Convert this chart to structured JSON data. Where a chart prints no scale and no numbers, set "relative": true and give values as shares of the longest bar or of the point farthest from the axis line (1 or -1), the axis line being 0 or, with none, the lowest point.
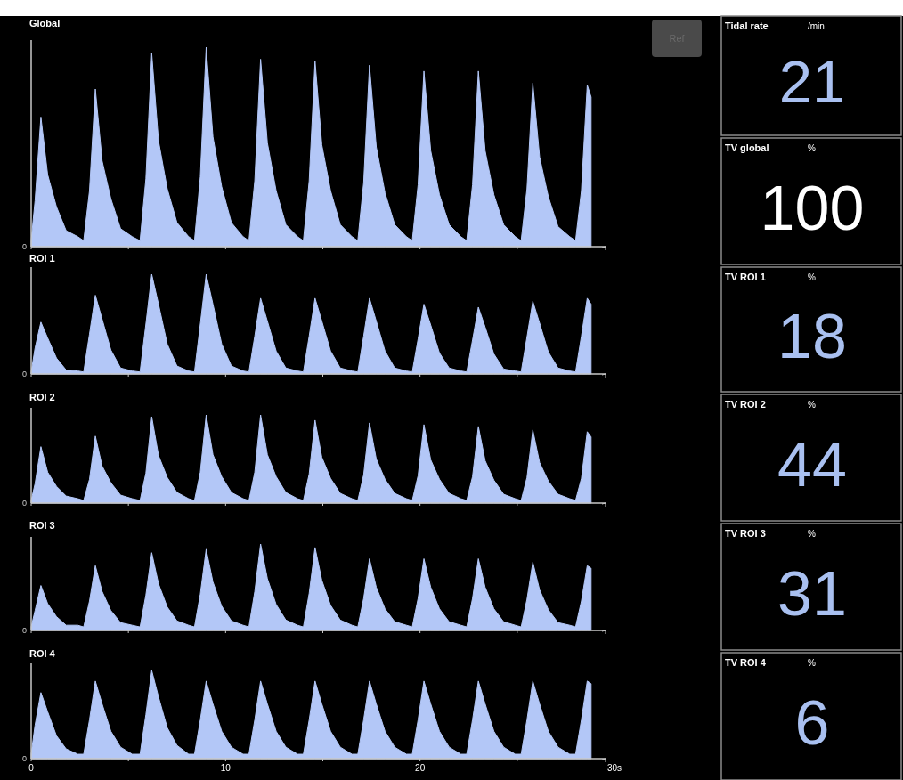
{
  "chart_data": [
    {
      "type": "area",
      "title": "Global",
      "relative": true,
      "xlim": [
        0,
        30
      ],
      "xticks": [
        0,
        5,
        10,
        15,
        20,
        25,
        30
      ],
      "tick_labels": false,
      "annotations": [
        "0",
        "Ref"
      ],
      "x": [
        0,
        0.2,
        0.5,
        0.85,
        1.3,
        1.8,
        2.4,
        2.7,
        3.0,
        3.3,
        3.65,
        4.1,
        4.6,
        5.2,
        5.6,
        5.9,
        6.2,
        6.55,
        7.0,
        7.5,
        8.1,
        8.4,
        8.7,
        9.0,
        9.35,
        9.8,
        10.3,
        10.9,
        11.2,
        11.5,
        11.8,
        12.15,
        12.6,
        13.1,
        13.7,
        14.0,
        14.3,
        14.6,
        14.95,
        15.4,
        15.9,
        16.5,
        16.8,
        17.1,
        17.4,
        17.75,
        18.2,
        18.7,
        19.3,
        19.6,
        19.9,
        20.2,
        20.55,
        21.0,
        21.5,
        22.1,
        22.4,
        22.7,
        23.0,
        23.35,
        23.8,
        24.3,
        24.9,
        25.2,
        25.5,
        25.8,
        26.15,
        26.6,
        27.1,
        27.7,
        28.0,
        28.3,
        28.6,
        28.8
      ],
      "series": [
        {
          "color": "#b3c7f7",
          "values": [
            0.03,
            0.23,
            0.65,
            0.36,
            0.2,
            0.08,
            0.05,
            0.03,
            0.28,
            0.79,
            0.43,
            0.24,
            0.09,
            0.05,
            0.03,
            0.34,
            0.97,
            0.53,
            0.29,
            0.12,
            0.05,
            0.03,
            0.35,
            1,
            0.55,
            0.3,
            0.12,
            0.05,
            0.03,
            0.33,
            0.94,
            0.52,
            0.28,
            0.11,
            0.05,
            0.03,
            0.33,
            0.93,
            0.51,
            0.28,
            0.11,
            0.05,
            0.03,
            0.32,
            0.91,
            0.5,
            0.27,
            0.11,
            0.05,
            0.03,
            0.31,
            0.88,
            0.48,
            0.26,
            0.11,
            0.05,
            0.03,
            0.31,
            0.88,
            0.48,
            0.26,
            0.11,
            0.05,
            0.03,
            0.29,
            0.82,
            0.45,
            0.25,
            0.1,
            0.05,
            0.03,
            0.28,
            0.81,
            0.75
          ]
        }
      ]
    },
    {
      "type": "area",
      "title": "ROI 1",
      "relative": true,
      "xlim": [
        0,
        30
      ],
      "xticks": [
        0,
        5,
        10,
        15,
        20,
        25,
        30
      ],
      "tick_labels": false,
      "annotations": [
        "0"
      ],
      "x": [
        0,
        0.2,
        0.5,
        0.85,
        1.3,
        1.8,
        2.4,
        2.7,
        3.0,
        3.3,
        3.65,
        4.1,
        4.6,
        5.2,
        5.6,
        5.9,
        6.2,
        6.55,
        7.0,
        7.5,
        8.1,
        8.4,
        8.7,
        9.0,
        9.35,
        9.8,
        10.3,
        10.9,
        11.2,
        11.5,
        11.8,
        12.15,
        12.6,
        13.1,
        13.7,
        14.0,
        14.3,
        14.6,
        14.95,
        15.4,
        15.9,
        16.5,
        16.8,
        17.1,
        17.4,
        17.75,
        18.2,
        18.7,
        19.3,
        19.6,
        19.9,
        20.2,
        20.55,
        21.0,
        21.5,
        22.1,
        22.4,
        22.7,
        23.0,
        23.35,
        23.8,
        24.3,
        24.9,
        25.2,
        25.5,
        25.8,
        26.15,
        26.6,
        27.1,
        27.7,
        28.0,
        28.3,
        28.6,
        28.8
      ],
      "series": [
        {
          "color": "#b3c7f7",
          "values": [
            0.02,
            0.26,
            0.52,
            0.36,
            0.16,
            0.04,
            0.03,
            0.02,
            0.4,
            0.79,
            0.55,
            0.24,
            0.06,
            0.03,
            0.02,
            0.5,
            1,
            0.7,
            0.3,
            0.08,
            0.03,
            0.02,
            0.5,
            1,
            0.7,
            0.3,
            0.08,
            0.03,
            0.02,
            0.38,
            0.76,
            0.53,
            0.23,
            0.06,
            0.03,
            0.02,
            0.38,
            0.76,
            0.53,
            0.23,
            0.06,
            0.03,
            0.02,
            0.38,
            0.76,
            0.53,
            0.23,
            0.06,
            0.03,
            0.02,
            0.35,
            0.7,
            0.49,
            0.21,
            0.06,
            0.03,
            0.02,
            0.34,
            0.67,
            0.47,
            0.2,
            0.05,
            0.03,
            0.02,
            0.37,
            0.73,
            0.51,
            0.22,
            0.06,
            0.03,
            0.02,
            0.38,
            0.76,
            0.7
          ]
        }
      ]
    },
    {
      "type": "area",
      "title": "ROI 2",
      "relative": true,
      "xlim": [
        0,
        30
      ],
      "xticks": [
        0,
        5,
        10,
        15,
        20,
        25,
        30
      ],
      "tick_labels": false,
      "annotations": [
        "0"
      ],
      "x": [
        0,
        0.2,
        0.5,
        0.85,
        1.3,
        1.8,
        2.4,
        2.7,
        3.0,
        3.3,
        3.65,
        4.1,
        4.6,
        5.2,
        5.6,
        5.9,
        6.2,
        6.55,
        7.0,
        7.5,
        8.1,
        8.4,
        8.7,
        9.0,
        9.35,
        9.8,
        10.3,
        10.9,
        11.2,
        11.5,
        11.8,
        12.15,
        12.6,
        13.1,
        13.7,
        14.0,
        14.3,
        14.6,
        14.95,
        15.4,
        15.9,
        16.5,
        16.8,
        17.1,
        17.4,
        17.75,
        18.2,
        18.7,
        19.3,
        19.6,
        19.9,
        20.2,
        20.55,
        21.0,
        21.5,
        22.1,
        22.4,
        22.7,
        23.0,
        23.35,
        23.8,
        24.3,
        24.9,
        25.2,
        25.5,
        25.8,
        26.15,
        26.6,
        27.1,
        27.7,
        28.0,
        28.3,
        28.6,
        28.8
      ],
      "series": [
        {
          "color": "#b3c7f7",
          "values": [
            0.03,
            0.22,
            0.64,
            0.35,
            0.19,
            0.08,
            0.05,
            0.03,
            0.27,
            0.76,
            0.42,
            0.23,
            0.09,
            0.05,
            0.03,
            0.34,
            0.98,
            0.54,
            0.29,
            0.12,
            0.05,
            0.03,
            0.35,
            1,
            0.55,
            0.3,
            0.12,
            0.05,
            0.03,
            0.35,
            1,
            0.55,
            0.3,
            0.12,
            0.05,
            0.03,
            0.33,
            0.94,
            0.52,
            0.28,
            0.11,
            0.05,
            0.03,
            0.32,
            0.91,
            0.5,
            0.27,
            0.11,
            0.05,
            0.03,
            0.31,
            0.89,
            0.49,
            0.27,
            0.11,
            0.05,
            0.03,
            0.3,
            0.87,
            0.48,
            0.26,
            0.1,
            0.05,
            0.03,
            0.29,
            0.83,
            0.46,
            0.25,
            0.1,
            0.05,
            0.03,
            0.28,
            0.81,
            0.75
          ]
        }
      ]
    },
    {
      "type": "area",
      "title": "ROI 3",
      "relative": true,
      "xlim": [
        0,
        30
      ],
      "xticks": [
        0,
        5,
        10,
        15,
        20,
        25,
        30
      ],
      "tick_labels": false,
      "annotations": [
        "0"
      ],
      "x": [
        0,
        0.2,
        0.5,
        0.85,
        1.3,
        1.8,
        2.4,
        2.7,
        3.0,
        3.3,
        3.65,
        4.1,
        4.6,
        5.2,
        5.6,
        5.9,
        6.2,
        6.55,
        7.0,
        7.5,
        8.1,
        8.4,
        8.7,
        9.0,
        9.35,
        9.8,
        10.3,
        10.9,
        11.2,
        11.5,
        11.8,
        12.15,
        12.6,
        13.1,
        13.7,
        14.0,
        14.3,
        14.6,
        14.95,
        15.4,
        15.9,
        16.5,
        16.8,
        17.1,
        17.4,
        17.75,
        18.2,
        18.7,
        19.3,
        19.6,
        19.9,
        20.2,
        20.55,
        21.0,
        21.5,
        22.1,
        22.4,
        22.7,
        23.0,
        23.35,
        23.8,
        24.3,
        24.9,
        25.2,
        25.5,
        25.8,
        26.15,
        26.6,
        27.1,
        27.7,
        28.0,
        28.3,
        28.6,
        28.8
      ],
      "series": [
        {
          "color": "#b3c7f7",
          "values": [
            0.04,
            0.23,
            0.52,
            0.31,
            0.16,
            0.06,
            0.06,
            0.04,
            0.34,
            0.75,
            0.45,
            0.23,
            0.09,
            0.06,
            0.04,
            0.41,
            0.9,
            0.54,
            0.27,
            0.11,
            0.06,
            0.04,
            0.42,
            0.94,
            0.56,
            0.28,
            0.11,
            0.06,
            0.04,
            0.45,
            1,
            0.6,
            0.3,
            0.12,
            0.06,
            0.04,
            0.43,
            0.96,
            0.58,
            0.29,
            0.12,
            0.06,
            0.04,
            0.37,
            0.83,
            0.5,
            0.25,
            0.1,
            0.06,
            0.04,
            0.37,
            0.83,
            0.5,
            0.25,
            0.1,
            0.06,
            0.04,
            0.37,
            0.83,
            0.5,
            0.25,
            0.1,
            0.06,
            0.04,
            0.36,
            0.79,
            0.47,
            0.24,
            0.09,
            0.06,
            0.04,
            0.34,
            0.75,
            0.72
          ]
        }
      ]
    },
    {
      "type": "area",
      "title": "ROI 4",
      "relative": true,
      "xlim": [
        0,
        30
      ],
      "xticks": [
        0,
        {
          "value": 5,
          "label": null
        },
        10,
        {
          "value": 15,
          "label": null
        },
        20,
        {
          "value": 25,
          "label": null
        },
        {
          "value": 30,
          "label": "30s"
        }
      ],
      "annotations": [
        "0"
      ],
      "x": [
        0,
        0.2,
        0.5,
        0.85,
        1.3,
        1.8,
        2.4,
        2.7,
        3.0,
        3.3,
        3.65,
        4.1,
        4.6,
        5.2,
        5.6,
        5.9,
        6.2,
        6.55,
        7.0,
        7.5,
        8.1,
        8.4,
        8.7,
        9.0,
        9.35,
        9.8,
        10.3,
        10.9,
        11.2,
        11.5,
        11.8,
        12.15,
        12.6,
        13.1,
        13.7,
        14.0,
        14.3,
        14.6,
        14.95,
        15.4,
        15.9,
        16.5,
        16.8,
        17.1,
        17.4,
        17.75,
        18.2,
        18.7,
        19.3,
        19.6,
        19.9,
        20.2,
        20.55,
        21.0,
        21.5,
        22.1,
        22.4,
        22.7,
        23.0,
        23.35,
        23.8,
        24.3,
        24.9,
        25.2,
        25.5,
        25.8,
        26.15,
        26.6,
        27.1,
        27.7,
        28.0,
        28.3,
        28.6,
        28.8
      ],
      "series": [
        {
          "color": "#b3c7f7",
          "values": [
            0.05,
            0.38,
            0.75,
            0.53,
            0.26,
            0.11,
            0.05,
            0.05,
            0.44,
            0.88,
            0.62,
            0.31,
            0.13,
            0.05,
            0.05,
            0.5,
            1,
            0.7,
            0.35,
            0.15,
            0.05,
            0.05,
            0.44,
            0.88,
            0.62,
            0.31,
            0.13,
            0.05,
            0.05,
            0.44,
            0.88,
            0.62,
            0.31,
            0.13,
            0.05,
            0.05,
            0.44,
            0.88,
            0.62,
            0.31,
            0.13,
            0.05,
            0.05,
            0.44,
            0.88,
            0.62,
            0.31,
            0.13,
            0.05,
            0.05,
            0.44,
            0.88,
            0.62,
            0.31,
            0.13,
            0.05,
            0.05,
            0.44,
            0.88,
            0.62,
            0.31,
            0.13,
            0.05,
            0.05,
            0.44,
            0.88,
            0.62,
            0.31,
            0.13,
            0.05,
            0.05,
            0.44,
            0.88,
            0.85
          ]
        }
      ]
    },
    {
      "type": "other",
      "title": "Tidal rate",
      "subtitle": "/min",
      "values": [
        21
      ],
      "data_labels": true,
      "color": "#a9c0f0"
    },
    {
      "type": "other",
      "title": "TV global",
      "subtitle": "%",
      "values": [
        100
      ],
      "data_labels": true,
      "color": "#ffffff"
    },
    {
      "type": "other",
      "title": "TV ROI 1",
      "subtitle": "%",
      "values": [
        18
      ],
      "data_labels": true,
      "color": "#a9c0f0"
    },
    {
      "type": "other",
      "title": "TV ROI 2",
      "subtitle": "%",
      "values": [
        44
      ],
      "data_labels": true,
      "color": "#a9c0f0"
    },
    {
      "type": "other",
      "title": "TV ROI 3",
      "subtitle": "%",
      "values": [
        31
      ],
      "data_labels": true,
      "color": "#a9c0f0"
    },
    {
      "type": "other",
      "title": "TV ROI 4",
      "subtitle": "%",
      "values": [
        6
      ],
      "data_labels": true,
      "color": "#a9c0f0"
    }
  ]
}
